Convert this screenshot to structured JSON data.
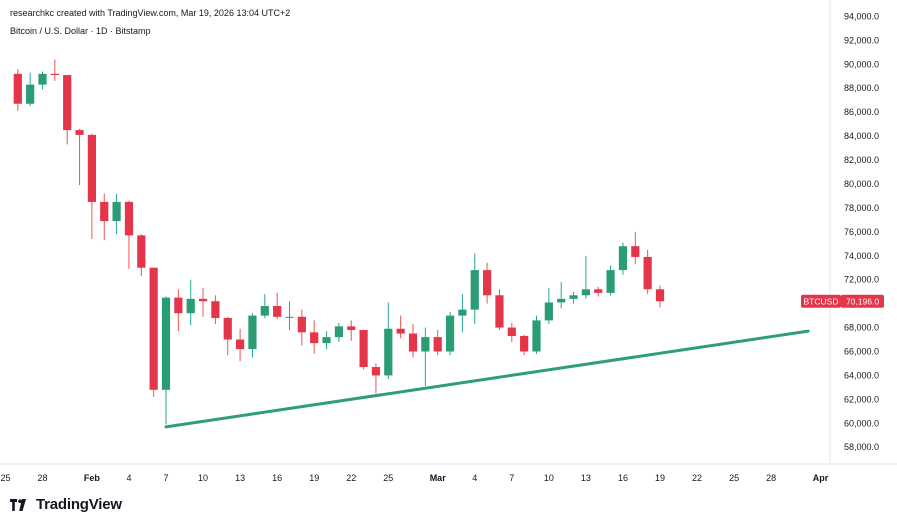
{
  "header": {
    "credit": "researchkc created with TradingView.com, Mar 19, 2026 13:04 UTC+2",
    "symbol": "Bitcoin / U.S. Dollar · 1D · Bitstamp"
  },
  "brand": {
    "name": "TradingView"
  },
  "price_tag": {
    "symbol": "BTCUSD",
    "value": "70,196.0"
  },
  "colors": {
    "up": "#26a69a",
    "down": "#ef5350",
    "upBody": "#2a9d74",
    "downBody": "#e5354a",
    "trend": "#2e9e78",
    "grid": "#f0f3fa",
    "text": "#131722"
  },
  "chart_data": {
    "type": "candlestick",
    "y_ticks": [
      "58,000.0",
      "60,000.0",
      "62,000.0",
      "64,000.0",
      "66,000.0",
      "68,000.0",
      "70,000.0",
      "72,000.0",
      "74,000.0",
      "76,000.0",
      "78,000.0",
      "80,000.0",
      "82,000.0",
      "84,000.0",
      "86,000.0",
      "88,000.0",
      "90,000.0",
      "92,000.0",
      "94,000.0"
    ],
    "ylim": [
      56600,
      94200
    ],
    "x_ticks": [
      {
        "label": "25",
        "day": -1
      },
      {
        "label": "28",
        "day": 2
      },
      {
        "label": "Feb",
        "day": 6
      },
      {
        "label": "4",
        "day": 9
      },
      {
        "label": "7",
        "day": 12
      },
      {
        "label": "10",
        "day": 15
      },
      {
        "label": "13",
        "day": 18
      },
      {
        "label": "16",
        "day": 21
      },
      {
        "label": "19",
        "day": 24
      },
      {
        "label": "22",
        "day": 27
      },
      {
        "label": "25",
        "day": 30
      },
      {
        "label": "Mar",
        "day": 34
      },
      {
        "label": "4",
        "day": 37
      },
      {
        "label": "7",
        "day": 40
      },
      {
        "label": "10",
        "day": 43
      },
      {
        "label": "13",
        "day": 46
      },
      {
        "label": "16",
        "day": 49
      },
      {
        "label": "19",
        "day": 52
      },
      {
        "label": "22",
        "day": 55
      },
      {
        "label": "25",
        "day": 58
      },
      {
        "label": "28",
        "day": 61
      },
      {
        "label": "Apr",
        "day": 65
      }
    ],
    "candles": [
      {
        "date": "Jan 26",
        "o": 89200,
        "h": 89600,
        "l": 86100,
        "c": 86700
      },
      {
        "date": "Jan 27",
        "o": 86700,
        "h": 89300,
        "l": 86500,
        "c": 88300
      },
      {
        "date": "Jan 28",
        "o": 88300,
        "h": 89400,
        "l": 87900,
        "c": 89200
      },
      {
        "date": "Jan 29",
        "o": 89200,
        "h": 90400,
        "l": 88600,
        "c": 89100
      },
      {
        "date": "Jan 30",
        "o": 89100,
        "h": 89100,
        "l": 83300,
        "c": 84500
      },
      {
        "date": "Jan 31",
        "o": 84500,
        "h": 84600,
        "l": 79900,
        "c": 84100
      },
      {
        "date": "Feb 1",
        "o": 84100,
        "h": 84200,
        "l": 75400,
        "c": 78500
      },
      {
        "date": "Feb 2",
        "o": 78500,
        "h": 79200,
        "l": 75300,
        "c": 76900
      },
      {
        "date": "Feb 3",
        "o": 76900,
        "h": 79200,
        "l": 75800,
        "c": 78500
      },
      {
        "date": "Feb 4",
        "o": 78500,
        "h": 78600,
        "l": 72900,
        "c": 75700
      },
      {
        "date": "Feb 5",
        "o": 75700,
        "h": 75800,
        "l": 72300,
        "c": 73000
      },
      {
        "date": "Feb 6",
        "o": 73000,
        "h": 73000,
        "l": 62200,
        "c": 62800
      },
      {
        "date": "Feb 7",
        "o": 62800,
        "h": 70600,
        "l": 59900,
        "c": 70500
      },
      {
        "date": "Feb 8",
        "o": 70500,
        "h": 71200,
        "l": 67700,
        "c": 69200
      },
      {
        "date": "Feb 9",
        "o": 69200,
        "h": 72000,
        "l": 68200,
        "c": 70400
      },
      {
        "date": "Feb 10",
        "o": 70400,
        "h": 71300,
        "l": 68900,
        "c": 70200
      },
      {
        "date": "Feb 11",
        "o": 70200,
        "h": 70700,
        "l": 68300,
        "c": 68800
      },
      {
        "date": "Feb 12",
        "o": 68800,
        "h": 68900,
        "l": 65700,
        "c": 67000
      },
      {
        "date": "Feb 13",
        "o": 67000,
        "h": 67900,
        "l": 65200,
        "c": 66200
      },
      {
        "date": "Feb 14",
        "o": 66200,
        "h": 69200,
        "l": 65500,
        "c": 69000
      },
      {
        "date": "Feb 15",
        "o": 69000,
        "h": 70800,
        "l": 68800,
        "c": 69800
      },
      {
        "date": "Feb 16",
        "o": 69800,
        "h": 70900,
        "l": 68700,
        "c": 68900
      },
      {
        "date": "Feb 17",
        "o": 68900,
        "h": 70200,
        "l": 67800,
        "c": 68900
      },
      {
        "date": "Feb 18",
        "o": 68900,
        "h": 69500,
        "l": 66500,
        "c": 67600
      },
      {
        "date": "Feb 19",
        "o": 67600,
        "h": 68600,
        "l": 65800,
        "c": 66700
      },
      {
        "date": "Feb 20",
        "o": 66700,
        "h": 67700,
        "l": 66200,
        "c": 67200
      },
      {
        "date": "Feb 21",
        "o": 67200,
        "h": 68400,
        "l": 66800,
        "c": 68100
      },
      {
        "date": "Feb 22",
        "o": 68100,
        "h": 68600,
        "l": 66900,
        "c": 67800
      },
      {
        "date": "Feb 23",
        "o": 67800,
        "h": 67800,
        "l": 64500,
        "c": 64700
      },
      {
        "date": "Feb 24",
        "o": 64700,
        "h": 65000,
        "l": 62500,
        "c": 64000
      },
      {
        "date": "Feb 25",
        "o": 64000,
        "h": 70100,
        "l": 63700,
        "c": 67900
      },
      {
        "date": "Feb 26",
        "o": 67900,
        "h": 69000,
        "l": 67100,
        "c": 67500
      },
      {
        "date": "Feb 27",
        "o": 67500,
        "h": 68300,
        "l": 65500,
        "c": 66000
      },
      {
        "date": "Feb 28",
        "o": 66000,
        "h": 68000,
        "l": 63100,
        "c": 67200
      },
      {
        "date": "Mar 1",
        "o": 67200,
        "h": 67800,
        "l": 65700,
        "c": 66000
      },
      {
        "date": "Mar 2",
        "o": 66000,
        "h": 69300,
        "l": 65700,
        "c": 69000
      },
      {
        "date": "Mar 3",
        "o": 69000,
        "h": 70800,
        "l": 67600,
        "c": 69500
      },
      {
        "date": "Mar 4",
        "o": 69500,
        "h": 74200,
        "l": 68300,
        "c": 72800
      },
      {
        "date": "Mar 5",
        "o": 72800,
        "h": 73400,
        "l": 70000,
        "c": 70700
      },
      {
        "date": "Mar 6",
        "o": 70700,
        "h": 71200,
        "l": 67800,
        "c": 68000
      },
      {
        "date": "Mar 7",
        "o": 68000,
        "h": 68400,
        "l": 66800,
        "c": 67300
      },
      {
        "date": "Mar 8",
        "o": 67300,
        "h": 67400,
        "l": 65700,
        "c": 66000
      },
      {
        "date": "Mar 9",
        "o": 66000,
        "h": 69000,
        "l": 65800,
        "c": 68600
      },
      {
        "date": "Mar 10",
        "o": 68600,
        "h": 71300,
        "l": 68300,
        "c": 70100
      },
      {
        "date": "Mar 11",
        "o": 70100,
        "h": 71800,
        "l": 69600,
        "c": 70400
      },
      {
        "date": "Mar 12",
        "o": 70400,
        "h": 71000,
        "l": 70000,
        "c": 70700
      },
      {
        "date": "Mar 13",
        "o": 70700,
        "h": 74000,
        "l": 70400,
        "c": 71200
      },
      {
        "date": "Mar 14",
        "o": 71200,
        "h": 71400,
        "l": 70600,
        "c": 70900
      },
      {
        "date": "Mar 15",
        "o": 70900,
        "h": 73200,
        "l": 70700,
        "c": 72800
      },
      {
        "date": "Mar 16",
        "o": 72800,
        "h": 75100,
        "l": 72400,
        "c": 74800
      },
      {
        "date": "Mar 17",
        "o": 74800,
        "h": 76000,
        "l": 73300,
        "c": 73900
      },
      {
        "date": "Mar 18",
        "o": 73900,
        "h": 74500,
        "l": 70800,
        "c": 71200
      },
      {
        "date": "Mar 19",
        "o": 71200,
        "h": 71500,
        "l": 69700,
        "c": 70196
      }
    ],
    "trendline": [
      {
        "date": "Feb 7",
        "price": 59700
      },
      {
        "date": "Mar 31",
        "price": 67700
      }
    ],
    "grid": false
  }
}
